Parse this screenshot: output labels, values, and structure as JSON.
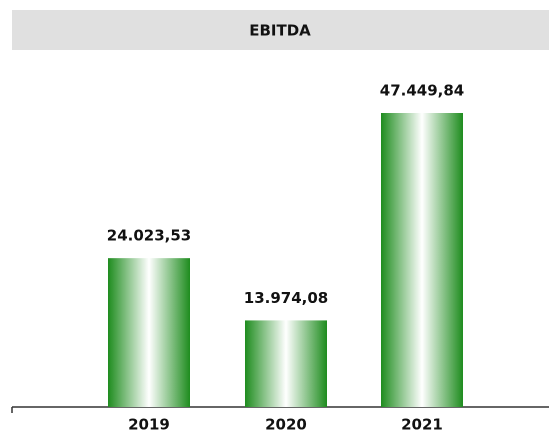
{
  "chart_data": {
    "type": "bar",
    "title": "EBITDA",
    "categories": [
      "2019",
      "2020",
      "2021"
    ],
    "values": [
      24023.53,
      13974.08,
      47449.84
    ],
    "value_labels": [
      "24.023,53",
      "13.974,08",
      "47.449,84"
    ],
    "color": "#1e8c1e"
  }
}
